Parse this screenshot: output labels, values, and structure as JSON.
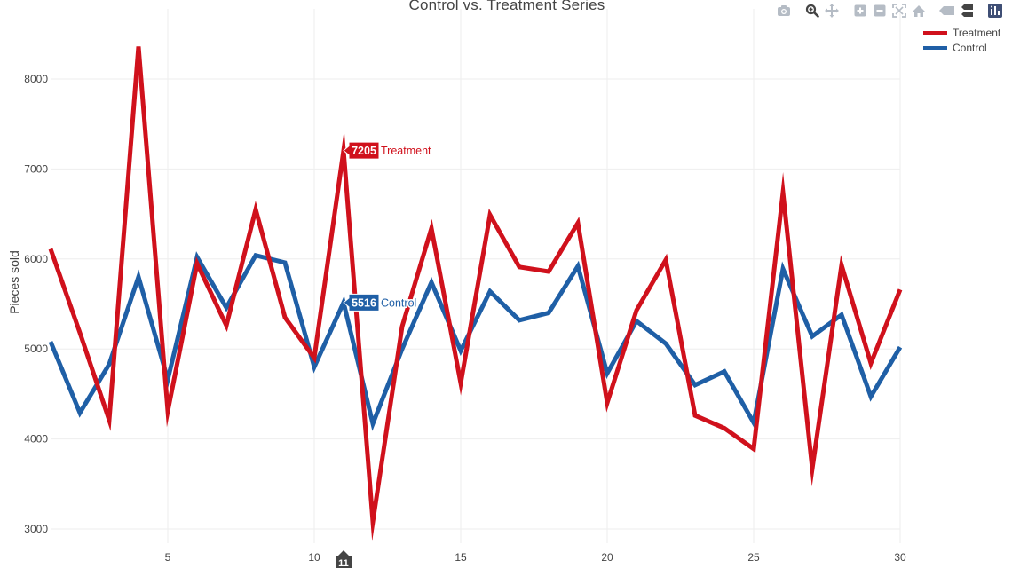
{
  "chart_data": {
    "type": "line",
    "title": "Control vs. Treatment Series",
    "xlabel": "",
    "ylabel": "Pieces sold",
    "xlim": [
      1,
      30
    ],
    "ylim": [
      2900,
      8650
    ],
    "x_ticks": [
      5,
      10,
      15,
      20,
      25,
      30
    ],
    "y_ticks": [
      3000,
      4000,
      5000,
      6000,
      7000,
      8000
    ],
    "grid": true,
    "legend_position": "top-right",
    "x": [
      1,
      2,
      3,
      4,
      5,
      6,
      7,
      8,
      9,
      10,
      11,
      12,
      13,
      14,
      15,
      16,
      17,
      18,
      19,
      20,
      21,
      22,
      23,
      24,
      25,
      26,
      27,
      28,
      29,
      30
    ],
    "series": [
      {
        "name": "Treatment",
        "color": "#d0111c",
        "values": [
          6110,
          5180,
          4210,
          8360,
          4310,
          5950,
          5260,
          6550,
          5350,
          4900,
          7205,
          3080,
          5250,
          6340,
          4620,
          6490,
          5910,
          5860,
          6400,
          4400,
          5430,
          5990,
          4260,
          4120,
          3890,
          6740,
          3670,
          5930,
          4840,
          5660
        ]
      },
      {
        "name": "Control",
        "color": "#1f5fa6",
        "values": [
          5080,
          4290,
          4830,
          5800,
          4660,
          6020,
          5460,
          6040,
          5960,
          4800,
          5516,
          4170,
          5000,
          5740,
          4980,
          5640,
          5320,
          5400,
          5920,
          4730,
          5310,
          5060,
          4600,
          4750,
          4180,
          5890,
          5140,
          5380,
          4470,
          5020
        ]
      }
    ],
    "hover": {
      "x": 11,
      "x_label": "11",
      "points": [
        {
          "series": "Treatment",
          "value": 7205,
          "value_label": "7205",
          "name_label": "Treatment"
        },
        {
          "series": "Control",
          "value": 5516,
          "value_label": "5516",
          "name_label": "Control"
        }
      ]
    }
  },
  "modebar": {
    "buttons": [
      "camera-icon",
      "zoom-icon",
      "pan-icon",
      "zoom-in-icon",
      "zoom-out-icon",
      "autoscale-icon",
      "home-icon",
      "hover-closest-icon",
      "hover-compare-icon",
      "plotly-logo-icon"
    ],
    "icon_color": "#b5bcc5",
    "active_color": "#444444",
    "logo_color": "#3f4f75"
  }
}
